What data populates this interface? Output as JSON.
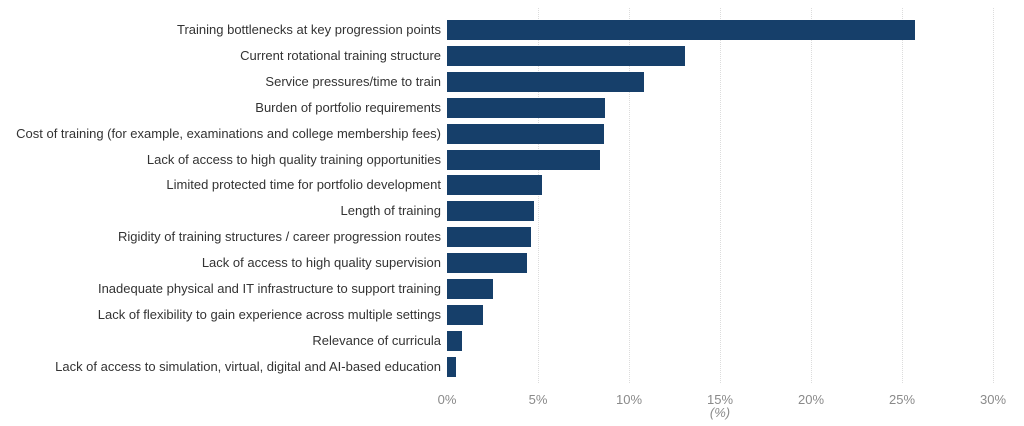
{
  "chart_data": {
    "type": "bar",
    "orientation": "horizontal",
    "title": "",
    "xlabel": "(%)",
    "ylabel": "",
    "xlim": [
      0,
      30
    ],
    "x_ticks": [
      "0%",
      "5%",
      "10%",
      "15%",
      "20%",
      "25%",
      "30%"
    ],
    "grid": "vertical dotted",
    "legend": "none",
    "bar_color": "#163f6a",
    "categories": [
      "Training bottlenecks at key progression points",
      "Current rotational training structure",
      "Service pressures/time to train",
      "Burden of portfolio requirements",
      "Cost of training (for example, examinations and college membership fees)",
      "Lack of access to high quality training opportunities",
      "Limited protected time for portfolio development",
      "Length of training",
      "Rigidity of training structures / career progression routes",
      "Lack of access to high quality supervision",
      "Inadequate physical and IT infrastructure to support training",
      "Lack of flexibility to gain experience across multiple settings",
      "Relevance of curricula",
      "Lack of access to simulation, virtual, digital and AI-based education"
    ],
    "values": [
      25.7,
      13.1,
      10.8,
      8.7,
      8.6,
      8.4,
      5.2,
      4.8,
      4.6,
      4.4,
      2.5,
      2.0,
      0.8,
      0.5
    ]
  }
}
